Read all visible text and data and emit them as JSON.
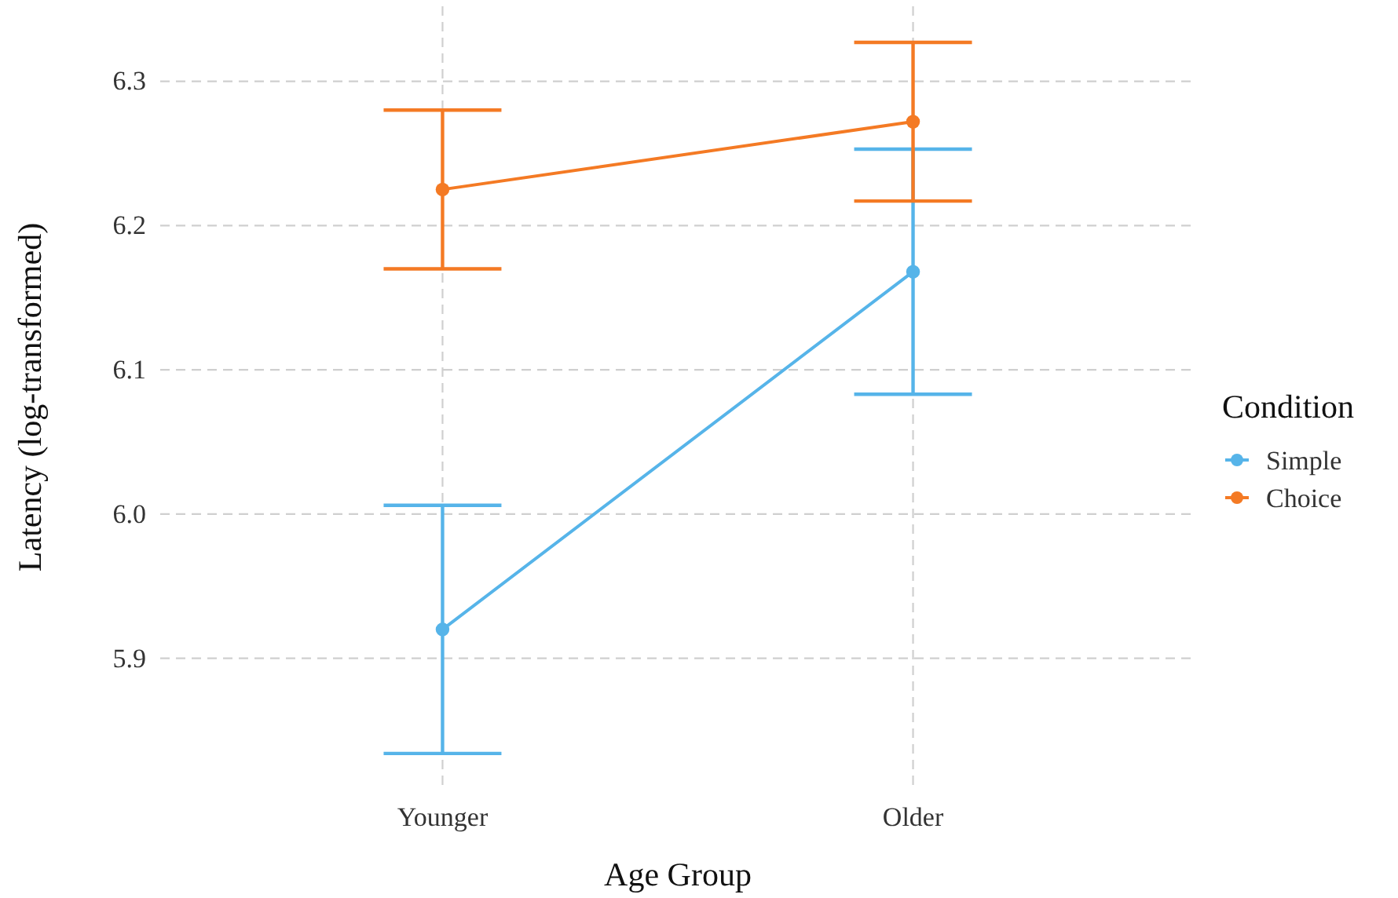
{
  "chart_data": {
    "type": "line",
    "xlabel": "Age Group",
    "ylabel": "Latency (log-transformed)",
    "legend_title": "Condition",
    "categories": [
      "Younger",
      "Older"
    ],
    "series": [
      {
        "name": "Simple",
        "color": "#56b4e9",
        "values": [
          5.92,
          6.168
        ],
        "errors": [
          0.086,
          0.085
        ]
      },
      {
        "name": "Choice",
        "color": "#f47a24",
        "values": [
          6.225,
          6.272
        ],
        "errors": [
          0.055,
          0.055
        ]
      }
    ],
    "ylim": [
      5.81,
      6.352
    ],
    "yticks": [
      5.9,
      {
        "value": 6,
        "label": "6.0"
      },
      6.1,
      6.2,
      6.3
    ],
    "grid": true,
    "legend": "right",
    "marker": "circle",
    "line_style": "solid"
  }
}
